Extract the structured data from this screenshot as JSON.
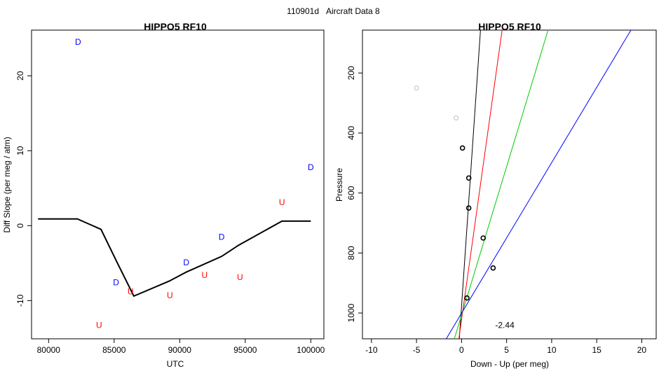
{
  "suptitle": {
    "left": "110901d",
    "right": "Aircraft Data 8"
  },
  "chart_data": [
    {
      "type": "line",
      "title": "HIPPO5 RF10",
      "xlabel": "UTC",
      "ylabel": "Diff Slope (per meg / atm)",
      "xlim": [
        78700,
        101000
      ],
      "ylim": [
        -15.1,
        26.1
      ],
      "xticks": [
        80000,
        85000,
        90000,
        95000,
        100000
      ],
      "yticks": [
        -10,
        0,
        10,
        20
      ],
      "grid": false,
      "line": {
        "color": "#000000",
        "x": [
          79200,
          82200,
          84000,
          85200,
          86500,
          89200,
          90500,
          93200,
          94500,
          97800,
          100000
        ],
        "y": [
          0.9,
          0.9,
          -0.5,
          -4.8,
          -9.4,
          -7.4,
          -6.2,
          -4.1,
          -2.6,
          0.6,
          0.6
        ]
      },
      "markers": [
        {
          "label": "D",
          "color": "#0000ff",
          "x": 82250,
          "y": 24.5
        },
        {
          "label": "U",
          "color": "#ff0000",
          "x": 83850,
          "y": -13.3
        },
        {
          "label": "D",
          "color": "#0000ff",
          "x": 85150,
          "y": -7.6
        },
        {
          "label": "U",
          "color": "#ff0000",
          "x": 86250,
          "y": -8.8
        },
        {
          "label": "U",
          "color": "#ff0000",
          "x": 89250,
          "y": -9.3
        },
        {
          "label": "D",
          "color": "#0000ff",
          "x": 90500,
          "y": -4.9
        },
        {
          "label": "U",
          "color": "#ff0000",
          "x": 91900,
          "y": -6.6
        },
        {
          "label": "D",
          "color": "#0000ff",
          "x": 93200,
          "y": -1.5
        },
        {
          "label": "U",
          "color": "#ff0000",
          "x": 94600,
          "y": -6.9
        },
        {
          "label": "U",
          "color": "#ff0000",
          "x": 97800,
          "y": 3.1
        },
        {
          "label": "D",
          "color": "#0000ff",
          "x": 100000,
          "y": 7.8
        }
      ]
    },
    {
      "type": "scatter",
      "title": "HIPPO5 RF10",
      "xlabel": "Down - Up (per meg)",
      "ylabel": "Pressure",
      "xlim": [
        -11,
        21.6
      ],
      "ylim_reversed": [
        1086,
        57
      ],
      "xticks": [
        -10,
        -5,
        0,
        5,
        10,
        15,
        20
      ],
      "yticks": [
        200,
        400,
        600,
        800,
        1000
      ],
      "grid": false,
      "annotation": "-2.44",
      "annotation_position": {
        "x": 4.8,
        "y": 1040
      },
      "points_excluded": {
        "color": "#c8c8c8",
        "x": [
          -5.0,
          -0.6
        ],
        "y": [
          250,
          350
        ]
      },
      "points": {
        "color": "#000000",
        "x": [
          0.1,
          0.8,
          0.8,
          2.4,
          3.5,
          0.6
        ],
        "y": [
          450,
          550,
          650,
          750,
          850,
          950
        ]
      },
      "fit_lines": [
        {
          "color": "#000000",
          "x": [
            -0.25,
            2.1
          ],
          "y": [
            1086,
            57
          ]
        },
        {
          "color": "#ff0000",
          "x": [
            -0.3,
            4.5
          ],
          "y": [
            1086,
            57
          ]
        },
        {
          "color": "#00cc00",
          "x": [
            -0.8,
            9.6
          ],
          "y": [
            1086,
            57
          ]
        },
        {
          "color": "#0000ff",
          "x": [
            -1.7,
            18.8
          ],
          "y": [
            1086,
            57
          ]
        }
      ]
    }
  ]
}
